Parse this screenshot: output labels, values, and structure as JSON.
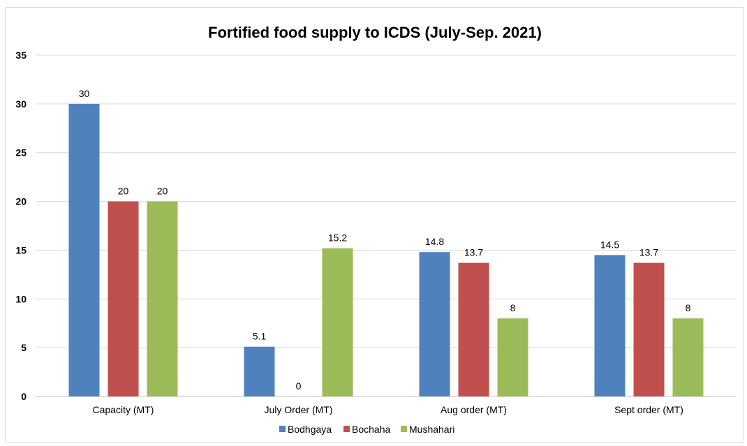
{
  "chart_data": {
    "type": "bar",
    "title": "Fortified food supply to ICDS (July-Sep. 2021)",
    "categories": [
      "Capacity (MT)",
      "July Order (MT)",
      "Aug order (MT)",
      "Sept order (MT)"
    ],
    "series": [
      {
        "name": "Bodhgaya",
        "color": "#4f81bd",
        "values": [
          30,
          5.1,
          14.8,
          14.5
        ]
      },
      {
        "name": "Bochaha",
        "color": "#c0504d",
        "values": [
          20,
          0,
          13.7,
          13.7
        ]
      },
      {
        "name": "Mushahari",
        "color": "#9bbb59",
        "values": [
          20,
          15.2,
          8,
          8
        ]
      }
    ],
    "data_labels": [
      [
        "30",
        "5.1",
        "14.8",
        "14.5"
      ],
      [
        "20",
        "0",
        "13.7",
        "13.7"
      ],
      [
        "20",
        "15.2",
        "8",
        "8"
      ]
    ],
    "ylim": [
      0,
      35
    ],
    "yticks": [
      "0",
      "5",
      "10",
      "15",
      "20",
      "25",
      "30",
      "35"
    ],
    "xlabel": "",
    "ylabel": "",
    "grid": true,
    "legend_position": "bottom"
  }
}
